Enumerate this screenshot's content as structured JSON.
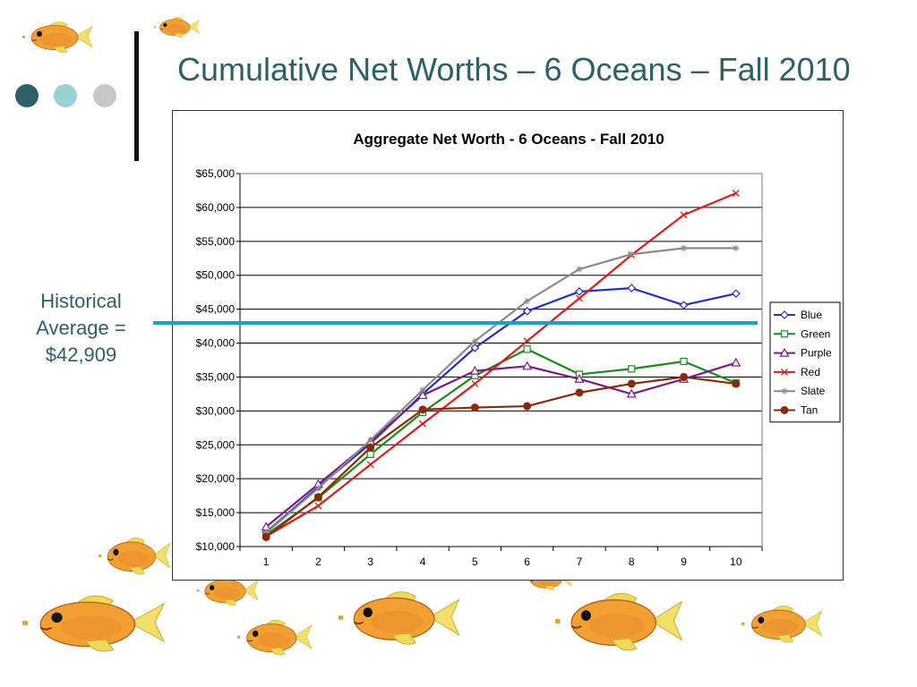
{
  "slide": {
    "title": "Cumulative Net Worths – 6 Oceans – Fall 2010",
    "title_color": "#2e6068",
    "historical_label_line1": "Historical",
    "historical_label_line2": "Average =",
    "historical_label_line3": "$42,909",
    "historical_line_color": "#1ba1c8",
    "bullet_dot_colors": [
      "#2e6068",
      "#9ad0d6",
      "#c8c8c8"
    ],
    "decoration_icon": "goldfish-icon"
  },
  "historical_average": 42909,
  "chart_data": {
    "type": "line",
    "title": "Aggregate Net Worth - 6 Oceans - Fall 2010",
    "xlabel": "",
    "ylabel": "",
    "x": [
      1,
      2,
      3,
      4,
      5,
      6,
      7,
      8,
      9,
      10
    ],
    "ylim": [
      10000,
      65000
    ],
    "y_tick_step": 5000,
    "y_tick_labels": [
      "$10,000",
      "$15,000",
      "$20,000",
      "$25,000",
      "$30,000",
      "$35,000",
      "$40,000",
      "$45,000",
      "$50,000",
      "$55,000",
      "$60,000",
      "$65,000"
    ],
    "grid": true,
    "legend": "right",
    "series": [
      {
        "name": "Blue",
        "color": "#1f2fd0",
        "marker": "diamond",
        "values": [
          12100,
          18800,
          25200,
          32500,
          39300,
          44700,
          47600,
          48100,
          45600,
          47300
        ]
      },
      {
        "name": "Green",
        "color": "#1a8a1a",
        "marker": "square",
        "values": [
          11700,
          17200,
          23600,
          29800,
          35200,
          39100,
          35400,
          36200,
          37300,
          34100
        ]
      },
      {
        "name": "Purple",
        "color": "#7a1a8a",
        "marker": "triangle",
        "values": [
          12900,
          19200,
          25500,
          32300,
          35900,
          36600,
          34700,
          32500,
          34700,
          37100
        ]
      },
      {
        "name": "Red",
        "color": "#e01a1a",
        "marker": "x",
        "values": [
          11500,
          16000,
          22100,
          28100,
          34000,
          40300,
          46600,
          53000,
          58900,
          62100
        ]
      },
      {
        "name": "Slate",
        "color": "#8a8a8a",
        "marker": "star",
        "values": [
          12000,
          18600,
          25700,
          33100,
          40300,
          46200,
          50900,
          53100,
          54000,
          54000
        ]
      },
      {
        "name": "Tan",
        "color": "#8a2a0a",
        "marker": "circle",
        "values": [
          11400,
          17300,
          24600,
          30200,
          30500,
          30700,
          32700,
          34000,
          35000,
          34000
        ]
      }
    ]
  }
}
